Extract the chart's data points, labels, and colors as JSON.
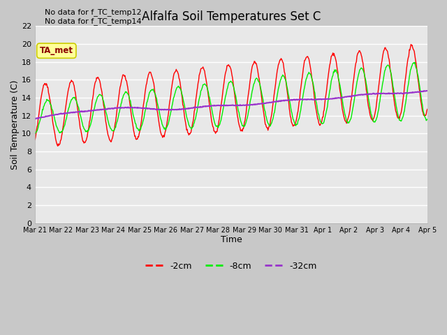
{
  "title": "Alfalfa Soil Temperatures Set C",
  "xlabel": "Time",
  "ylabel": "Soil Temperature (C)",
  "ylim": [
    0,
    22
  ],
  "yticks": [
    0,
    2,
    4,
    6,
    8,
    10,
    12,
    14,
    16,
    18,
    20,
    22
  ],
  "no_data_text": [
    "No data for f_TC_temp12",
    "No data for f_TC_temp14"
  ],
  "legend_label_box": "TA_met",
  "fig_bg_color": "#c8c8c8",
  "plot_bg_color": "#e8e8e8",
  "line_colors": {
    "2cm": "#ff0000",
    "8cm": "#00ee00",
    "32cm": "#9933cc"
  },
  "legend_labels": [
    "-2cm",
    "-8cm",
    "-32cm"
  ],
  "legend_colors": [
    "#ff0000",
    "#00ee00",
    "#9933cc"
  ],
  "x_tick_labels": [
    "Mar 21",
    "Mar 22",
    "Mar 23",
    "Mar 24",
    "Mar 25",
    "Mar 26",
    "Mar 27",
    "Mar 28",
    "Mar 29",
    "Mar 30",
    "Mar 31",
    "Apr 1",
    "Apr 2",
    "Apr 3",
    "Apr 4",
    "Apr 5"
  ],
  "num_days": 15,
  "points_per_day": 48
}
